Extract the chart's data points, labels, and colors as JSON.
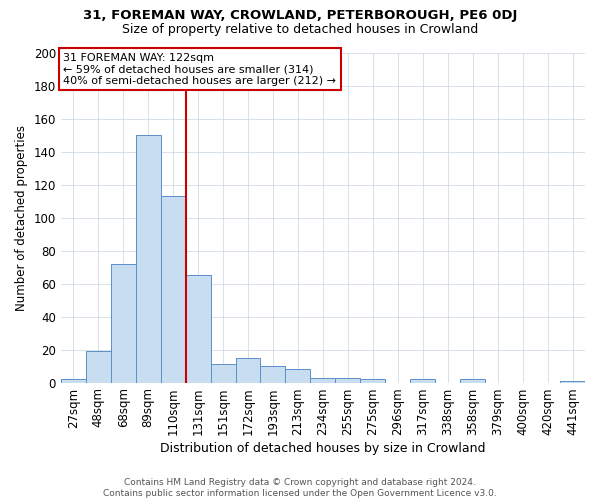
{
  "title1": "31, FOREMAN WAY, CROWLAND, PETERBOROUGH, PE6 0DJ",
  "title2": "Size of property relative to detached houses in Crowland",
  "xlabel": "Distribution of detached houses by size in Crowland",
  "ylabel": "Number of detached properties",
  "categories": [
    "27sqm",
    "48sqm",
    "68sqm",
    "89sqm",
    "110sqm",
    "131sqm",
    "151sqm",
    "172sqm",
    "193sqm",
    "213sqm",
    "234sqm",
    "255sqm",
    "275sqm",
    "296sqm",
    "317sqm",
    "338sqm",
    "358sqm",
    "379sqm",
    "400sqm",
    "420sqm",
    "441sqm"
  ],
  "values": [
    2,
    19,
    72,
    150,
    113,
    65,
    11,
    15,
    10,
    8,
    3,
    3,
    2,
    0,
    2,
    0,
    2,
    0,
    0,
    0,
    1
  ],
  "bar_color": "#c8ddf0",
  "bar_edge_color": "#5b8fc9",
  "vline_color": "#cc0000",
  "vline_position": 4.5,
  "annotation_line1": "31 FOREMAN WAY: 122sqm",
  "annotation_line2": "← 59% of detached houses are smaller (314)",
  "annotation_line3": "40% of semi-detached houses are larger (212) →",
  "ann_box_color": "#cc0000",
  "ylim": [
    0,
    200
  ],
  "yticks": [
    0,
    20,
    40,
    60,
    80,
    100,
    120,
    140,
    160,
    180,
    200
  ],
  "footer1": "Contains HM Land Registry data © Crown copyright and database right 2024.",
  "footer2": "Contains public sector information licensed under the Open Government Licence v3.0.",
  "bg_color": "#ffffff",
  "grid_color": "#c8d4e0"
}
